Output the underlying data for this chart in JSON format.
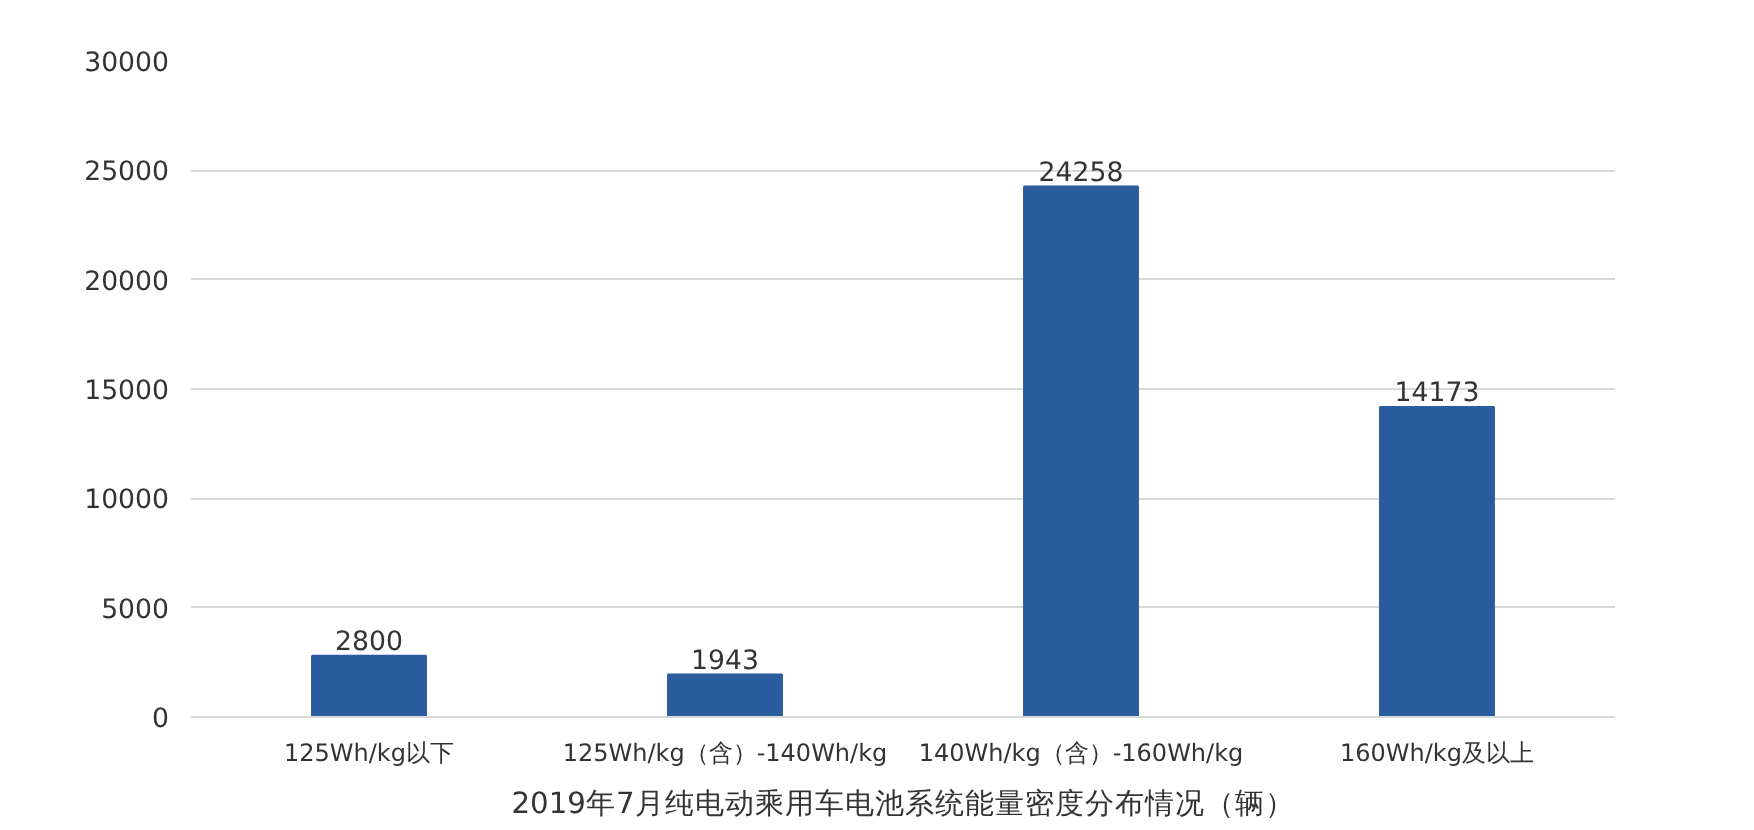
{
  "chart_data": {
    "type": "bar",
    "title": "2019年7月纯电动乘用车电池系统能量密度分布情况（辆）",
    "categories": [
      "125Wh/kg以下",
      "125Wh/kg（含）-140Wh/kg",
      "140Wh/kg（含）-160Wh/kg",
      "160Wh/kg及以上"
    ],
    "values": [
      2800,
      1943,
      24258,
      14173
    ],
    "color": "#2a5d9f",
    "ylim": [
      0,
      30000
    ],
    "yticks": [
      0,
      5000,
      10000,
      15000,
      20000,
      25000,
      30000
    ],
    "grid": "y",
    "data_labels": true
  }
}
